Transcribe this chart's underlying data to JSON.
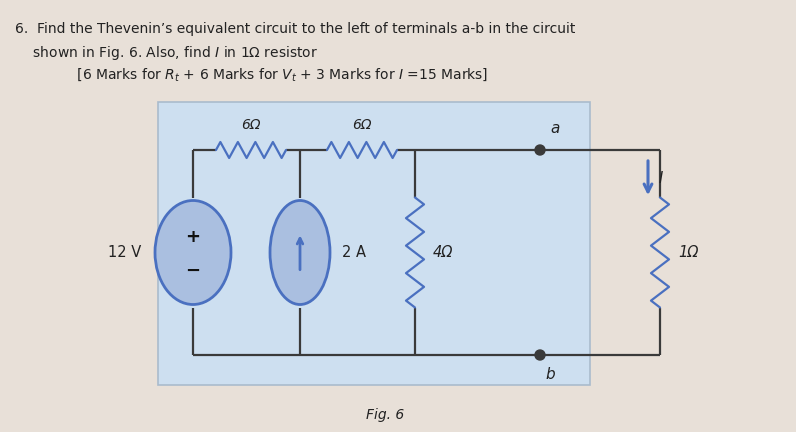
{
  "bg_color": "#cddff0",
  "outer_bg": "#e8e0d8",
  "title_lines": [
    "6.  Find the Thevenin’s equivalent circuit to the left of terminals a-b in the circuit",
    "    shown in Fig. 6. Also, find $I$ in 1Ω resistor",
    "              [6 Marks for $R_t$ + 6 Marks for $V_t$ + 3 Marks for $I$ =15 Marks]"
  ],
  "fig_label": "Fig. 6",
  "wire_color": "#3a3a3a",
  "component_color": "#4a70c0",
  "resistor_color": "#4a70c0",
  "text_color": "#222222",
  "arrow_color": "#4a70c0"
}
